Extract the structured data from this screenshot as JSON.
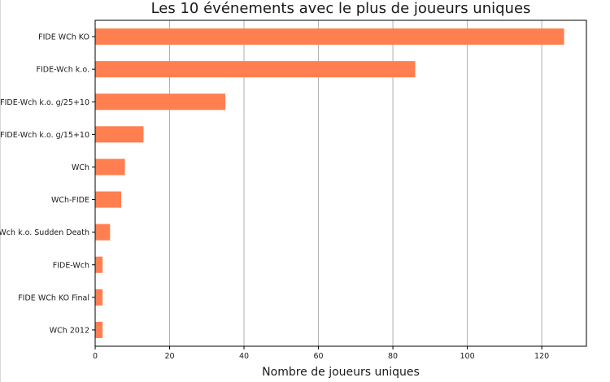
{
  "chart_data": {
    "type": "bar",
    "orientation": "horizontal",
    "title": "Les 10 événements avec le plus de joueurs uniques",
    "xlabel": "Nombre de joueurs uniques",
    "ylabel": "",
    "categories": [
      "FIDE WCh KO",
      "FIDE-Wch k.o.",
      "FIDE-Wch k.o. g/25+10",
      "FIDE-Wch k.o. g/15+10",
      "WCh",
      "WCh-FIDE",
      "FIDE-Wch k.o. Sudden Death",
      "FIDE-Wch",
      "FIDE WCh KO Final",
      "WCh 2012"
    ],
    "values": [
      126,
      86,
      35,
      13,
      8,
      7,
      4,
      2,
      2,
      2
    ],
    "xlim": [
      0,
      132
    ],
    "xticks": [
      0,
      20,
      40,
      60,
      80,
      100,
      120
    ],
    "grid": "x",
    "bar_color": "#ff7f50"
  }
}
